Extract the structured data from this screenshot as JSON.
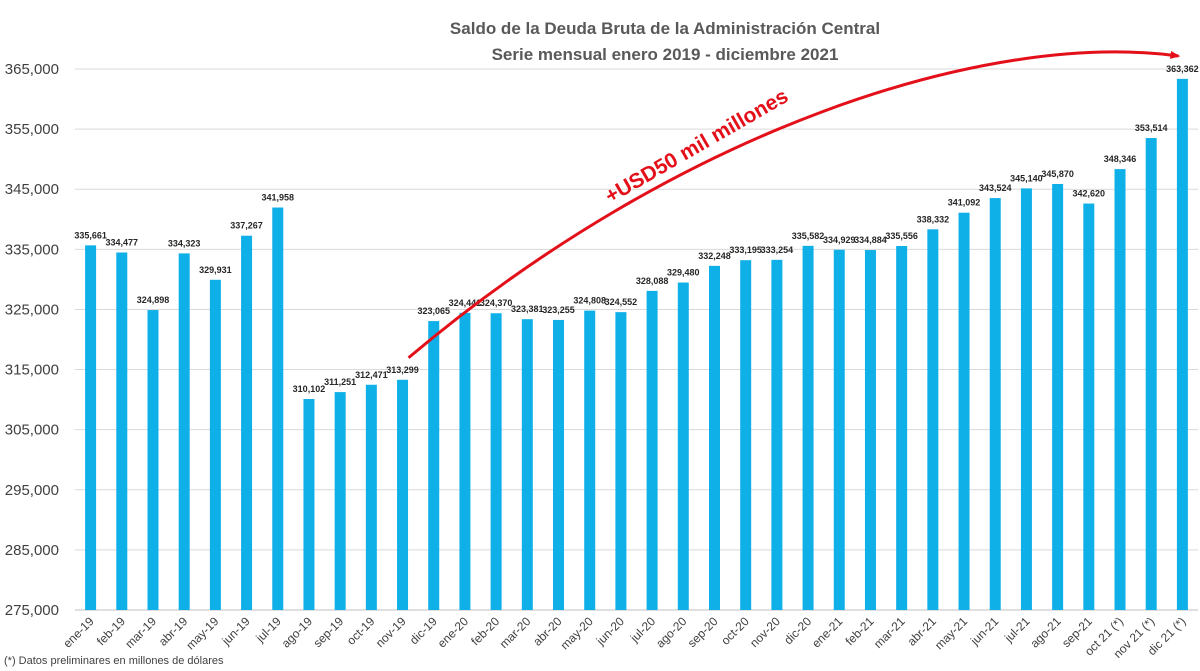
{
  "chart_data": {
    "type": "bar",
    "title": "Saldo de la Deuda Bruta de la Administración Central",
    "subtitle": "Serie mensual enero 2019 - diciembre 2021",
    "xlabel": "",
    "ylabel": "",
    "ylim": [
      275000,
      365000
    ],
    "yticks": [
      275000,
      285000,
      295000,
      305000,
      315000,
      325000,
      335000,
      345000,
      355000,
      365000
    ],
    "ytick_labels": [
      "275,000",
      "285,000",
      "295,000",
      "305,000",
      "315,000",
      "325,000",
      "335,000",
      "345,000",
      "355,000",
      "365,000"
    ],
    "grid": true,
    "bar_color": "#0fb0e8",
    "categories": [
      "ene-19",
      "feb-19",
      "mar-19",
      "abr-19",
      "may-19",
      "jun-19",
      "jul-19",
      "ago-19",
      "sep-19",
      "oct-19",
      "nov-19",
      "dic-19",
      "ene-20",
      "feb-20",
      "mar-20",
      "abr-20",
      "may-20",
      "jun-20",
      "jul-20",
      "ago-20",
      "sep-20",
      "oct-20",
      "nov-20",
      "dic-20",
      "ene-21",
      "feb-21",
      "mar-21",
      "abr-21",
      "may-21",
      "jun-21",
      "jul-21",
      "ago-21",
      "sep-21",
      "oct 21 (*)",
      "nov 21 (*)",
      "dic 21 (*)"
    ],
    "values": [
      335661,
      334477,
      324898,
      334323,
      329931,
      337267,
      341958,
      310102,
      311251,
      312471,
      313299,
      323065,
      324441,
      324370,
      323381,
      323255,
      324808,
      324552,
      328088,
      329480,
      332248,
      333195,
      333254,
      335582,
      334929,
      334884,
      335556,
      338332,
      341092,
      343524,
      345140,
      345870,
      342620,
      348346,
      353514,
      363362
    ],
    "value_labels": [
      "335,661",
      "334,477",
      "324,898",
      "334,323",
      "329,931",
      "337,267",
      "341,958",
      "310,102",
      "311,251",
      "312,471",
      "313,299",
      "323,065",
      "324,441",
      "324,370",
      "323,381",
      "323,255",
      "324,808",
      "324,552",
      "328,088",
      "329,480",
      "332,248",
      "333,195",
      "333,254",
      "335,582",
      "334,929",
      "334,884",
      "335,556",
      "338,332",
      "341,092",
      "343,524",
      "345,140",
      "345,870",
      "342,620",
      "348,346",
      "353,514",
      "363,362"
    ],
    "annotation": {
      "text": "+USD50 mil millones",
      "color": "#e3101a",
      "from_category": "nov-19",
      "to_category": "dic 21 (*)"
    },
    "footnote": "(*) Datos preliminares en millones de dólares"
  }
}
